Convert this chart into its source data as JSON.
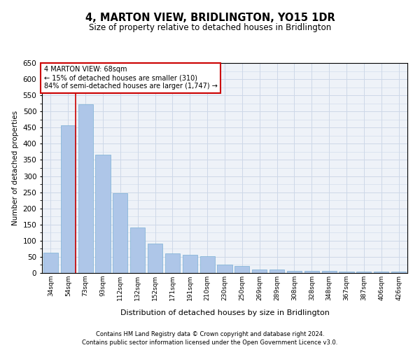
{
  "title": "4, MARTON VIEW, BRIDLINGTON, YO15 1DR",
  "subtitle": "Size of property relative to detached houses in Bridlington",
  "xlabel": "Distribution of detached houses by size in Bridlington",
  "ylabel": "Number of detached properties",
  "categories": [
    "34sqm",
    "54sqm",
    "73sqm",
    "93sqm",
    "112sqm",
    "132sqm",
    "152sqm",
    "171sqm",
    "191sqm",
    "210sqm",
    "230sqm",
    "250sqm",
    "269sqm",
    "289sqm",
    "308sqm",
    "328sqm",
    "348sqm",
    "367sqm",
    "387sqm",
    "406sqm",
    "426sqm"
  ],
  "values": [
    62,
    457,
    522,
    366,
    248,
    140,
    92,
    60,
    57,
    53,
    25,
    22,
    10,
    11,
    7,
    6,
    6,
    5,
    4,
    5,
    4
  ],
  "bar_color": "#aec6e8",
  "bar_edge_color": "#7aafd4",
  "annotation_text_line1": "4 MARTON VIEW: 68sqm",
  "annotation_text_line2": "← 15% of detached houses are smaller (310)",
  "annotation_text_line3": "84% of semi-detached houses are larger (1,747) →",
  "annotation_box_color": "#ffffff",
  "annotation_box_edge": "#cc0000",
  "red_line_color": "#cc0000",
  "grid_color": "#cdd8e8",
  "background_color": "#eef2f8",
  "footer_line1": "Contains HM Land Registry data © Crown copyright and database right 2024.",
  "footer_line2": "Contains public sector information licensed under the Open Government Licence v3.0.",
  "ylim": [
    0,
    650
  ],
  "yticks": [
    0,
    50,
    100,
    150,
    200,
    250,
    300,
    350,
    400,
    450,
    500,
    550,
    600,
    650
  ]
}
